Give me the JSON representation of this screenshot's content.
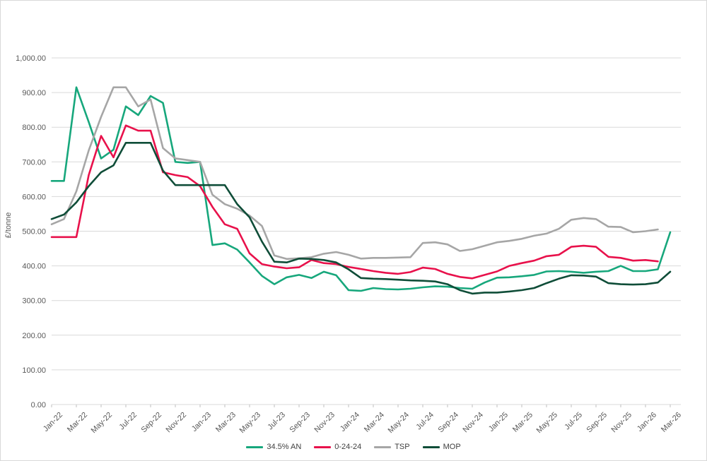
{
  "chart": {
    "ylabel": "£/tonne",
    "legend_labels": [
      "34.5% AN",
      "0-24-24",
      "TSP",
      "MOP"
    ]
  },
  "chart_data": {
    "type": "line",
    "title": "",
    "xlabel": "",
    "ylabel": "£/tonne",
    "ylim": [
      0,
      1000
    ],
    "y_tick_step": 100,
    "y_tick_format": "1,000.00",
    "x_label_every": 2,
    "grid": true,
    "legend_position": "bottom",
    "x": [
      "Jan-22",
      "Feb-22",
      "Mar-22",
      "Apr-22",
      "May-22",
      "Jun-22",
      "Jul-22",
      "Aug-22",
      "Sep-22",
      "Oct-22",
      "Nov-22",
      "Dec-22",
      "Jan-23",
      "Feb-23",
      "Mar-23",
      "Apr-23",
      "May-23",
      "Jun-23",
      "Jul-23",
      "Aug-23",
      "Sep-23",
      "Oct-23",
      "Nov-23",
      "Dec-23",
      "Jan-24",
      "Feb-24",
      "Mar-24",
      "Apr-24",
      "May-24",
      "Jun-24",
      "Jul-24",
      "Aug-24",
      "Sep-24",
      "Oct-24",
      "Nov-24",
      "Dec-24",
      "Jan-25",
      "Feb-25",
      "Mar-25",
      "Apr-25",
      "May-25",
      "Jun-25",
      "Jul-25",
      "Aug-25",
      "Sep-25",
      "Oct-25",
      "Nov-25",
      "Dec-25",
      "Jan-26",
      "Feb-26",
      "Mar-26"
    ],
    "series": [
      {
        "name": "34.5% AN",
        "color": "#17A77C",
        "values": [
          645,
          645,
          915,
          815,
          710,
          735,
          860,
          835,
          890,
          870,
          700,
          697,
          700,
          460,
          465,
          447,
          410,
          371,
          347,
          367,
          374,
          365,
          383,
          373,
          330,
          328,
          336,
          333,
          332,
          334,
          338,
          341,
          340,
          336,
          334,
          352,
          366,
          367,
          370,
          374,
          384,
          385,
          383,
          380,
          383,
          385,
          400,
          385,
          385,
          390,
          497
        ]
      },
      {
        "name": "0-24-24",
        "color": "#E8114B",
        "values": [
          483,
          483,
          483,
          662,
          775,
          713,
          805,
          790,
          790,
          670,
          662,
          656,
          630,
          570,
          520,
          507,
          436,
          405,
          398,
          393,
          396,
          417,
          408,
          405,
          397,
          391,
          385,
          380,
          377,
          382,
          395,
          391,
          377,
          368,
          364,
          374,
          384,
          400,
          408,
          415,
          428,
          432,
          455,
          458,
          455,
          426,
          423,
          415,
          417,
          413,
          null
        ]
      },
      {
        "name": "TSP",
        "color": "#A6A6A6",
        "values": [
          520,
          535,
          615,
          733,
          830,
          915,
          915,
          860,
          880,
          740,
          710,
          705,
          700,
          605,
          578,
          565,
          545,
          515,
          430,
          420,
          422,
          425,
          435,
          440,
          432,
          421,
          423,
          423,
          424,
          425,
          466,
          468,
          462,
          443,
          448,
          458,
          468,
          472,
          478,
          487,
          493,
          507,
          533,
          538,
          535,
          513,
          512,
          497,
          500,
          505,
          null
        ]
      },
      {
        "name": "MOP",
        "color": "#0F4D38",
        "values": [
          535,
          548,
          583,
          630,
          670,
          690,
          755,
          755,
          755,
          675,
          633,
          633,
          633,
          633,
          633,
          578,
          540,
          470,
          412,
          410,
          421,
          420,
          417,
          410,
          390,
          365,
          363,
          362,
          360,
          358,
          357,
          355,
          347,
          330,
          320,
          323,
          323,
          326,
          330,
          336,
          350,
          363,
          373,
          372,
          369,
          350,
          347,
          346,
          347,
          352,
          383
        ]
      }
    ],
    "axis_colors": {
      "grid": "#D9D9D9",
      "tick": "#BFBFBF",
      "label": "#595959"
    }
  }
}
